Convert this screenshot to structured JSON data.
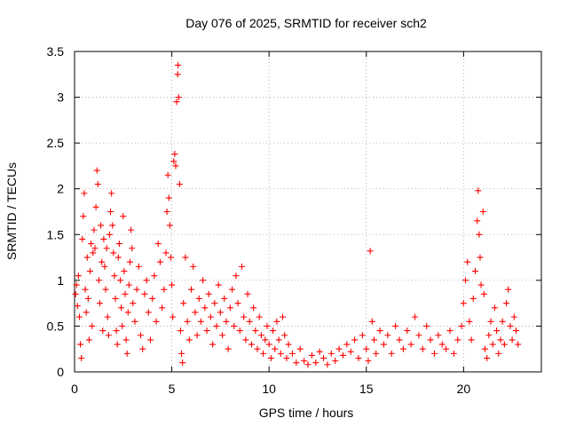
{
  "chart_data": {
    "type": "scatter",
    "title": "Day 076 of 2025, SRMTID for receiver sch2",
    "xlabel": "GPS time / hours",
    "ylabel": "SRMTID / TECUs",
    "xlim": [
      0,
      24
    ],
    "ylim": [
      0,
      3.5
    ],
    "x_ticks": [
      0,
      5,
      10,
      15,
      20
    ],
    "x_tick_labels": [
      "0",
      "5",
      "10",
      "15",
      "20"
    ],
    "y_ticks": [
      0,
      0.5,
      1,
      1.5,
      2,
      2.5,
      3,
      3.5
    ],
    "y_tick_labels": [
      "0",
      "0.5",
      "1",
      "1.5",
      "2",
      "2.5",
      "3",
      "3.5"
    ],
    "grid": true,
    "marker": "+",
    "color": "#ff0000",
    "series": [
      {
        "name": "SRMTID",
        "points": [
          [
            0.05,
            0.85
          ],
          [
            0.1,
            0.95
          ],
          [
            0.15,
            0.72
          ],
          [
            0.2,
            1.05
          ],
          [
            0.25,
            0.6
          ],
          [
            0.3,
            0.3
          ],
          [
            0.35,
            0.15
          ],
          [
            0.4,
            1.45
          ],
          [
            0.45,
            1.7
          ],
          [
            0.5,
            1.95
          ],
          [
            0.55,
            0.9
          ],
          [
            0.6,
            0.65
          ],
          [
            0.65,
            1.25
          ],
          [
            0.7,
            0.8
          ],
          [
            0.75,
            0.35
          ],
          [
            0.8,
            1.1
          ],
          [
            0.85,
            1.4
          ],
          [
            0.9,
            0.5
          ],
          [
            0.95,
            1.3
          ],
          [
            1.0,
            1.55
          ],
          [
            1.05,
            1.35
          ],
          [
            1.1,
            1.8
          ],
          [
            1.15,
            2.2
          ],
          [
            1.2,
            2.05
          ],
          [
            1.25,
            1.0
          ],
          [
            1.3,
            0.75
          ],
          [
            1.35,
            1.6
          ],
          [
            1.4,
            1.2
          ],
          [
            1.45,
            0.45
          ],
          [
            1.5,
            1.45
          ],
          [
            1.55,
            1.15
          ],
          [
            1.6,
            0.9
          ],
          [
            1.65,
            1.35
          ],
          [
            1.7,
            0.6
          ],
          [
            1.75,
            0.4
          ],
          [
            1.8,
            1.5
          ],
          [
            1.85,
            1.75
          ],
          [
            1.9,
            1.95
          ],
          [
            1.95,
            1.6
          ],
          [
            2.0,
            1.3
          ],
          [
            2.05,
            1.05
          ],
          [
            2.1,
            0.8
          ],
          [
            2.15,
            0.45
          ],
          [
            2.2,
            0.3
          ],
          [
            2.25,
            1.25
          ],
          [
            2.3,
            1.4
          ],
          [
            2.35,
            1.0
          ],
          [
            2.4,
            0.7
          ],
          [
            2.45,
            0.5
          ],
          [
            2.5,
            1.7
          ],
          [
            2.55,
            1.1
          ],
          [
            2.6,
            0.85
          ],
          [
            2.65,
            0.35
          ],
          [
            2.7,
            0.2
          ],
          [
            2.75,
            0.65
          ],
          [
            2.8,
            0.95
          ],
          [
            2.85,
            1.2
          ],
          [
            2.9,
            1.55
          ],
          [
            2.95,
            1.35
          ],
          [
            3.0,
            0.75
          ],
          [
            3.1,
            0.55
          ],
          [
            3.2,
            0.9
          ],
          [
            3.3,
            1.15
          ],
          [
            3.4,
            0.4
          ],
          [
            3.5,
            0.25
          ],
          [
            3.6,
            0.85
          ],
          [
            3.7,
            1.0
          ],
          [
            3.8,
            0.65
          ],
          [
            3.9,
            0.35
          ],
          [
            4.0,
            0.8
          ],
          [
            4.1,
            1.05
          ],
          [
            4.2,
            0.55
          ],
          [
            4.3,
            1.4
          ],
          [
            4.4,
            1.2
          ],
          [
            4.5,
            0.7
          ],
          [
            4.6,
            0.9
          ],
          [
            4.7,
            1.3
          ],
          [
            4.75,
            1.75
          ],
          [
            4.8,
            2.15
          ],
          [
            4.85,
            1.9
          ],
          [
            4.9,
            1.6
          ],
          [
            4.95,
            1.25
          ],
          [
            5.0,
            0.95
          ],
          [
            5.05,
            0.6
          ],
          [
            5.1,
            2.3
          ],
          [
            5.15,
            2.38
          ],
          [
            5.2,
            2.25
          ],
          [
            5.25,
            2.95
          ],
          [
            5.3,
            3.25
          ],
          [
            5.32,
            3.35
          ],
          [
            5.35,
            3.0
          ],
          [
            5.4,
            2.05
          ],
          [
            5.45,
            0.45
          ],
          [
            5.5,
            0.2
          ],
          [
            5.55,
            0.1
          ],
          [
            5.6,
            0.75
          ],
          [
            5.7,
            1.25
          ],
          [
            5.8,
            0.55
          ],
          [
            5.9,
            0.35
          ],
          [
            6.0,
            0.9
          ],
          [
            6.1,
            1.15
          ],
          [
            6.2,
            0.65
          ],
          [
            6.3,
            0.4
          ],
          [
            6.4,
            0.8
          ],
          [
            6.5,
            0.55
          ],
          [
            6.6,
            1.0
          ],
          [
            6.7,
            0.7
          ],
          [
            6.8,
            0.45
          ],
          [
            6.9,
            0.85
          ],
          [
            7.0,
            0.6
          ],
          [
            7.1,
            0.3
          ],
          [
            7.2,
            0.75
          ],
          [
            7.3,
            0.5
          ],
          [
            7.4,
            0.95
          ],
          [
            7.5,
            0.65
          ],
          [
            7.6,
            0.4
          ],
          [
            7.7,
            0.8
          ],
          [
            7.8,
            0.55
          ],
          [
            7.9,
            0.25
          ],
          [
            8.0,
            0.7
          ],
          [
            8.1,
            0.9
          ],
          [
            8.2,
            0.5
          ],
          [
            8.3,
            1.05
          ],
          [
            8.4,
            0.75
          ],
          [
            8.5,
            0.45
          ],
          [
            8.6,
            1.15
          ],
          [
            8.7,
            0.6
          ],
          [
            8.8,
            0.35
          ],
          [
            8.9,
            0.85
          ],
          [
            9.0,
            0.55
          ],
          [
            9.1,
            0.3
          ],
          [
            9.2,
            0.7
          ],
          [
            9.3,
            0.45
          ],
          [
            9.4,
            0.25
          ],
          [
            9.5,
            0.6
          ],
          [
            9.6,
            0.4
          ],
          [
            9.7,
            0.2
          ],
          [
            9.8,
            0.35
          ],
          [
            9.9,
            0.5
          ],
          [
            10.0,
            0.3
          ],
          [
            10.1,
            0.15
          ],
          [
            10.2,
            0.45
          ],
          [
            10.3,
            0.25
          ],
          [
            10.4,
            0.55
          ],
          [
            10.5,
            0.35
          ],
          [
            10.6,
            0.2
          ],
          [
            10.7,
            0.6
          ],
          [
            10.8,
            0.4
          ],
          [
            10.9,
            0.15
          ],
          [
            11.0,
            0.3
          ],
          [
            11.2,
            0.2
          ],
          [
            11.4,
            0.1
          ],
          [
            11.6,
            0.25
          ],
          [
            11.8,
            0.12
          ],
          [
            12.0,
            0.08
          ],
          [
            12.2,
            0.18
          ],
          [
            12.4,
            0.1
          ],
          [
            12.6,
            0.22
          ],
          [
            12.8,
            0.15
          ],
          [
            13.0,
            0.08
          ],
          [
            13.2,
            0.2
          ],
          [
            13.4,
            0.12
          ],
          [
            13.6,
            0.25
          ],
          [
            13.8,
            0.18
          ],
          [
            14.0,
            0.3
          ],
          [
            14.2,
            0.22
          ],
          [
            14.4,
            0.35
          ],
          [
            14.6,
            0.15
          ],
          [
            14.8,
            0.4
          ],
          [
            15.0,
            0.25
          ],
          [
            15.1,
            0.12
          ],
          [
            15.2,
            1.32
          ],
          [
            15.3,
            0.55
          ],
          [
            15.4,
            0.35
          ],
          [
            15.5,
            0.2
          ],
          [
            15.7,
            0.45
          ],
          [
            15.9,
            0.3
          ],
          [
            16.1,
            0.4
          ],
          [
            16.3,
            0.2
          ],
          [
            16.5,
            0.5
          ],
          [
            16.7,
            0.35
          ],
          [
            16.9,
            0.25
          ],
          [
            17.1,
            0.45
          ],
          [
            17.3,
            0.3
          ],
          [
            17.5,
            0.6
          ],
          [
            17.7,
            0.4
          ],
          [
            17.9,
            0.25
          ],
          [
            18.1,
            0.5
          ],
          [
            18.3,
            0.35
          ],
          [
            18.5,
            0.2
          ],
          [
            18.7,
            0.4
          ],
          [
            18.9,
            0.3
          ],
          [
            19.1,
            0.25
          ],
          [
            19.3,
            0.45
          ],
          [
            19.5,
            0.2
          ],
          [
            19.7,
            0.35
          ],
          [
            19.9,
            0.5
          ],
          [
            20.0,
            0.75
          ],
          [
            20.1,
            1.0
          ],
          [
            20.2,
            1.2
          ],
          [
            20.3,
            0.55
          ],
          [
            20.4,
            0.35
          ],
          [
            20.5,
            0.8
          ],
          [
            20.6,
            1.1
          ],
          [
            20.7,
            1.65
          ],
          [
            20.75,
            1.98
          ],
          [
            20.8,
            1.5
          ],
          [
            20.85,
            1.25
          ],
          [
            20.9,
            0.95
          ],
          [
            21.0,
            1.75
          ],
          [
            21.05,
            0.85
          ],
          [
            21.1,
            0.25
          ],
          [
            21.2,
            0.15
          ],
          [
            21.3,
            0.4
          ],
          [
            21.4,
            0.55
          ],
          [
            21.5,
            0.3
          ],
          [
            21.6,
            0.7
          ],
          [
            21.7,
            0.45
          ],
          [
            21.8,
            0.2
          ],
          [
            21.9,
            0.35
          ],
          [
            22.0,
            0.55
          ],
          [
            22.1,
            0.3
          ],
          [
            22.2,
            0.75
          ],
          [
            22.3,
            0.9
          ],
          [
            22.4,
            0.5
          ],
          [
            22.5,
            0.35
          ],
          [
            22.6,
            0.6
          ],
          [
            22.7,
            0.45
          ],
          [
            22.8,
            0.3
          ]
        ]
      }
    ]
  }
}
